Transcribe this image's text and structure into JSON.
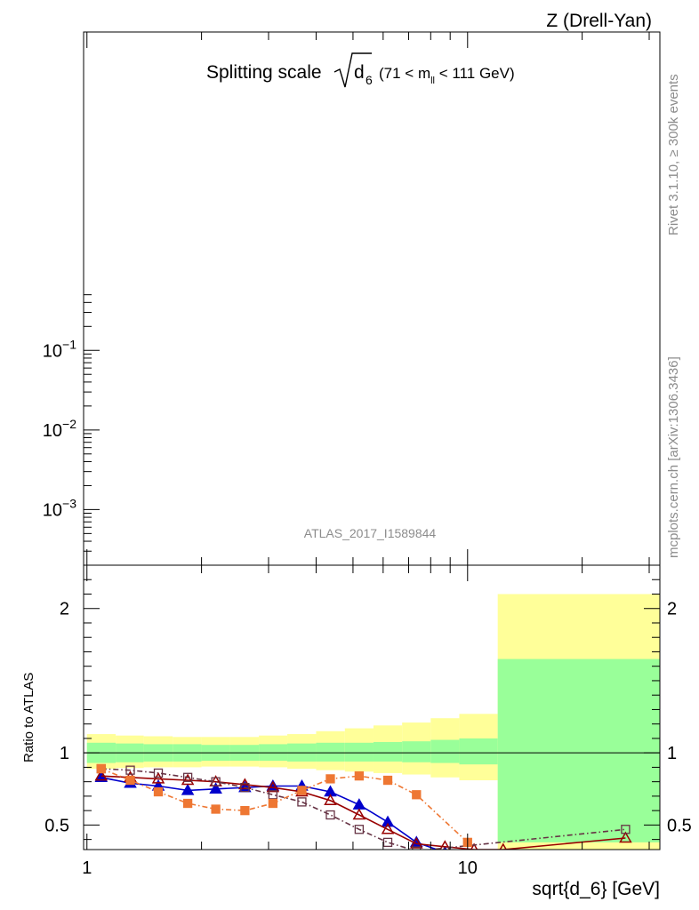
{
  "header": {
    "process": "Z (Drell-Yan)",
    "title_main": "Splitting scale",
    "title_var": "d",
    "title_sub": "6",
    "title_cut_pre": "(71 < m",
    "title_cut_sub": "ll",
    "title_cut_post": " < 111 GeV)",
    "analysis_id": "ATLAS_2017_I1589844",
    "side_top": "Rivet 3.1.10, ≥ 300k events",
    "side_bottom": "mcplots.cern.ch [arXiv:1306.3436]"
  },
  "chart_data": [
    {
      "type": "line",
      "panel": "main",
      "xscale": "log",
      "yscale": "log",
      "xlim": [
        0.98,
        32
      ],
      "ylim": [
        0.0002,
        1000
      ],
      "y_ticks": [
        {
          "value": 0.1,
          "base": "10",
          "exp": "−1"
        },
        {
          "value": 0.01,
          "base": "10",
          "exp": "−2"
        },
        {
          "value": 0.001,
          "base": "10",
          "exp": "−3"
        }
      ],
      "series": []
    },
    {
      "type": "line",
      "panel": "ratio",
      "xscale": "log",
      "xlim": [
        0.98,
        32
      ],
      "ylim": [
        0.33,
        2.3
      ],
      "xlabel": "sqrt{d_6} [GeV]",
      "ylabel": "Ratio to ATLAS",
      "x_ticks": [
        {
          "value": 1,
          "label": "1"
        },
        {
          "value": 10,
          "label": "10"
        }
      ],
      "y_ticks": [
        {
          "value": 0.5,
          "label": "0.5"
        },
        {
          "value": 1,
          "label": "1"
        },
        {
          "value": 2,
          "label": "2"
        }
      ],
      "bands": {
        "edges": [
          1.0,
          1.19,
          1.41,
          1.68,
          2.0,
          2.38,
          2.83,
          3.36,
          4.0,
          4.76,
          5.66,
          6.73,
          8.0,
          9.51,
          12.0,
          32.0
        ],
        "inner_low": [
          0.93,
          0.935,
          0.94,
          0.94,
          0.945,
          0.945,
          0.945,
          0.94,
          0.94,
          0.94,
          0.94,
          0.935,
          0.93,
          0.92,
          0.38
        ],
        "inner_high": [
          1.07,
          1.065,
          1.06,
          1.06,
          1.055,
          1.055,
          1.06,
          1.065,
          1.07,
          1.07,
          1.075,
          1.08,
          1.09,
          1.1,
          1.65
        ],
        "outer_low": [
          0.89,
          0.895,
          0.9,
          0.9,
          0.905,
          0.905,
          0.9,
          0.89,
          0.88,
          0.87,
          0.86,
          0.85,
          0.83,
          0.81,
          0.3
        ],
        "outer_high": [
          1.13,
          1.12,
          1.115,
          1.11,
          1.11,
          1.11,
          1.12,
          1.13,
          1.15,
          1.17,
          1.19,
          1.21,
          1.24,
          1.27,
          2.1
        ],
        "inner_color": "#99ff99",
        "outer_color": "#ffff99"
      },
      "series": [
        {
          "color": "#0000cc",
          "marker": "triangle-filled",
          "dash": "solid",
          "x": [
            1.09,
            1.3,
            1.54,
            1.84,
            2.18,
            2.6,
            3.08,
            3.67,
            4.36,
            5.19,
            6.17,
            7.34,
            8.72
          ],
          "y": [
            0.83,
            0.79,
            0.77,
            0.74,
            0.75,
            0.76,
            0.77,
            0.77,
            0.73,
            0.64,
            0.52,
            0.38,
            0.31
          ]
        },
        {
          "color": "#990000",
          "marker": "triangle-open",
          "dash": "solid",
          "x": [
            1.09,
            1.3,
            1.54,
            1.84,
            2.18,
            2.6,
            3.08,
            3.67,
            4.36,
            5.19,
            6.17,
            7.34,
            8.72,
            10.4,
            12.4,
            26.0
          ],
          "y": [
            0.84,
            0.83,
            0.82,
            0.81,
            0.8,
            0.78,
            0.76,
            0.73,
            0.67,
            0.57,
            0.47,
            0.37,
            0.35,
            0.33,
            0.33,
            0.41
          ]
        },
        {
          "color": "#663344",
          "marker": "square-open",
          "dash": "dashdot",
          "x": [
            1.09,
            1.3,
            1.54,
            1.84,
            2.18,
            2.6,
            3.08,
            3.67,
            4.36,
            5.19,
            6.17,
            7.34,
            26.0
          ],
          "y": [
            0.89,
            0.88,
            0.86,
            0.83,
            0.8,
            0.76,
            0.71,
            0.66,
            0.57,
            0.47,
            0.38,
            0.32,
            0.47
          ]
        },
        {
          "color": "#ee7733",
          "marker": "square-filled",
          "dash": "dashdot",
          "x": [
            1.09,
            1.3,
            1.54,
            1.84,
            2.18,
            2.6,
            3.08,
            3.67,
            4.36,
            5.19,
            6.17,
            7.34,
            10.0
          ],
          "y": [
            0.89,
            0.81,
            0.73,
            0.65,
            0.61,
            0.6,
            0.65,
            0.74,
            0.82,
            0.84,
            0.81,
            0.71,
            0.38
          ]
        }
      ]
    }
  ]
}
